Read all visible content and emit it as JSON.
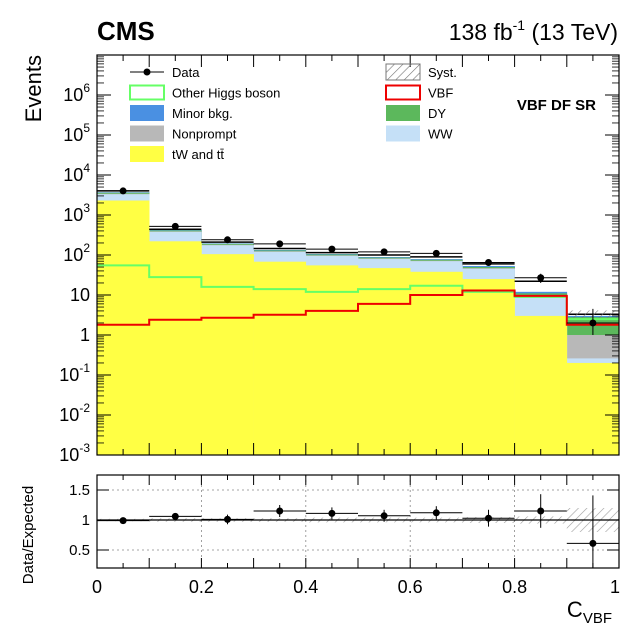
{
  "header": {
    "experiment": "CMS",
    "lumi_value": "138 fb",
    "lumi_exp": "-1",
    "lumi_energy": " (13 TeV)"
  },
  "main": {
    "region_label": "VBF DF SR",
    "ylabel": "Events"
  },
  "ratio": {
    "ylabel": "Data/Expected"
  },
  "xaxis": {
    "label_base": "C",
    "label_sub": "VBF"
  },
  "legend": [
    {
      "id": "data",
      "label": "Data",
      "style": "marker",
      "color": "#000000"
    },
    {
      "id": "syst",
      "label": "Syst.",
      "style": "hatch",
      "color": "#777777"
    },
    {
      "id": "other_higgs",
      "label": "Other Higgs boson",
      "style": "line",
      "color": "#66ff66"
    },
    {
      "id": "vbf",
      "label": "VBF",
      "style": "line",
      "color": "#ee0000"
    },
    {
      "id": "minor",
      "label": "Minor bkg.",
      "style": "fill",
      "color": "#4a90e2"
    },
    {
      "id": "dy",
      "label": "DY",
      "style": "fill",
      "color": "#5cb85c"
    },
    {
      "id": "nonprompt",
      "label": "Nonprompt",
      "style": "fill",
      "color": "#b8b8b8"
    },
    {
      "id": "ww",
      "label": "WW",
      "style": "fill",
      "color": "#c5e0f7"
    },
    {
      "id": "top",
      "label": "tW and tt̄",
      "style": "fill",
      "color": "#ffff44"
    }
  ],
  "chart_data": {
    "type": "bar",
    "x_bin_edges": [
      0,
      0.1,
      0.2,
      0.3,
      0.4,
      0.5,
      0.6,
      0.7,
      0.8,
      0.9,
      1.0
    ],
    "xlim": [
      0,
      1
    ],
    "ylim": [
      0.001,
      10000000
    ],
    "yscale": "log",
    "x_ticks": [
      "0",
      "0.2",
      "0.4",
      "0.6",
      "0.8",
      "1"
    ],
    "y_ticks": [
      "10-3",
      "10-2",
      "10-1",
      "1",
      "10",
      "102",
      "103",
      "104",
      "105",
      "106"
    ],
    "stack_totals": [
      {
        "name": "tW and tt̄",
        "values": [
          2300,
          220,
          105,
          68,
          55,
          47,
          38,
          25,
          3,
          0.2
        ]
      },
      {
        "name": "WW",
        "values": [
          3300,
          380,
          175,
          120,
          95,
          80,
          70,
          45,
          8.5,
          0.26
        ]
      },
      {
        "name": "Nonprompt",
        "values": [
          3400,
          390,
          180,
          124,
          98,
          82,
          72,
          47,
          9.5,
          1.0
        ]
      },
      {
        "name": "DY",
        "values": [
          3600,
          410,
          190,
          130,
          103,
          86,
          76,
          50,
          11,
          2.8
        ]
      },
      {
        "name": "Minor bkg.",
        "values": [
          3700,
          420,
          195,
          134,
          106,
          89,
          79,
          53,
          12,
          3.0
        ]
      }
    ],
    "total_expected": [
      4000,
      440,
      210,
      145,
      115,
      100,
      90,
      60,
      22,
      3.3
    ],
    "lines": [
      {
        "name": "Other Higgs boson",
        "values": [
          55,
          28,
          16,
          14,
          12,
          14,
          17,
          12,
          9,
          2.5
        ]
      },
      {
        "name": "VBF",
        "values": [
          1.8,
          2.4,
          2.7,
          3.2,
          4.0,
          6.0,
          10,
          13,
          9.5,
          1.8
        ]
      }
    ],
    "data": {
      "x": [
        0.05,
        0.15,
        0.25,
        0.35,
        0.45,
        0.55,
        0.65,
        0.75,
        0.85,
        0.95
      ],
      "y": [
        4000,
        520,
        240,
        190,
        140,
        120,
        110,
        65,
        27,
        2.0
      ],
      "yerr_low": [
        200,
        30,
        20,
        18,
        15,
        14,
        13,
        10,
        7,
        1.0
      ],
      "yerr_high": [
        200,
        30,
        20,
        18,
        15,
        14,
        13,
        10,
        7,
        2.5
      ]
    },
    "ratio": {
      "ylim": [
        0.2,
        1.75
      ],
      "y_ticks": [
        "0.5",
        "1",
        "1.5"
      ],
      "values": [
        0.99,
        1.06,
        1.01,
        1.15,
        1.11,
        1.07,
        1.12,
        1.03,
        1.15,
        0.61
      ],
      "errors": [
        0.03,
        0.05,
        0.08,
        0.1,
        0.1,
        0.1,
        0.11,
        0.14,
        0.28,
        0.8
      ],
      "syst_band": [
        0.02,
        0.03,
        0.03,
        0.03,
        0.04,
        0.04,
        0.04,
        0.05,
        0.06,
        0.2
      ]
    }
  }
}
